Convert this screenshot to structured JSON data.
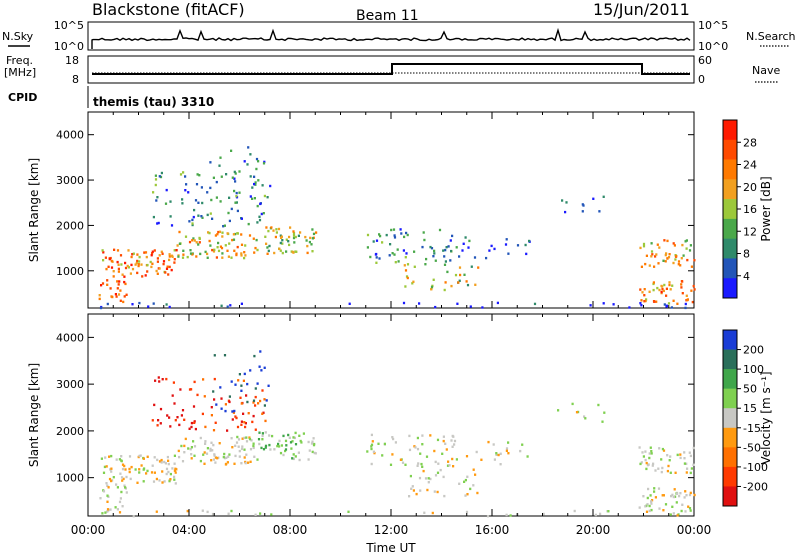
{
  "header": {
    "radar": "Blackstone (fitACF)",
    "beam": "Beam 11",
    "date": "15/Jun/2011"
  },
  "nsky_panel": {
    "left_label": "N.Sky",
    "left_ticks": [
      "10^5",
      "10^0"
    ],
    "right_ticks": [
      "10^5",
      "10^0"
    ],
    "right_label": "N.Search"
  },
  "freq_panel": {
    "left_label_line1": "Freq.",
    "left_label_line2": "[MHz]",
    "left_ticks": [
      "18",
      "8"
    ],
    "right_ticks": [
      "60",
      "0"
    ],
    "right_label": "Nave"
  },
  "cpid": {
    "label": "CPID",
    "value": "themis (tau) 3310"
  },
  "chart_data": [
    {
      "type": "heatmap",
      "name": "power",
      "ylabel": "Slant Range [km]",
      "yticks": [
        "4000",
        "3000",
        "2000",
        "1000"
      ],
      "ytick_values": [
        4000,
        3000,
        2000,
        1000
      ],
      "ylim": [
        180,
        4500
      ],
      "xlim": [
        0,
        24
      ],
      "colorbar_label": "Power [dB]",
      "colorbar_ticks": [
        "28",
        "24",
        "20",
        "16",
        "12",
        "8",
        "4"
      ],
      "colorbar_colors": [
        "#1a1aff",
        "#2255b8",
        "#2f8a6a",
        "#4aa84a",
        "#9cc83a",
        "#f2a020",
        "#ff7a00",
        "#ff4a00",
        "#ff1a00"
      ]
    },
    {
      "type": "heatmap",
      "name": "velocity",
      "ylabel": "Slant Range [km]",
      "yticks": [
        "4000",
        "3000",
        "2000",
        "1000"
      ],
      "ytick_values": [
        4000,
        3000,
        2000,
        1000
      ],
      "ylim": [
        180,
        4500
      ],
      "xlim": [
        0,
        24
      ],
      "colorbar_label": "Velocity [m s⁻¹]",
      "colorbar_ticks": [
        "200",
        "100",
        "50",
        "15",
        "-15",
        "-50",
        "-100",
        "-200"
      ],
      "colorbar_colors": [
        "#1a3dd6",
        "#2a6f5a",
        "#3fa64a",
        "#7fd050",
        "#c8c8c4",
        "#ff9a10",
        "#ff7000",
        "#ff3a00",
        "#e01010"
      ]
    }
  ],
  "xaxis": {
    "label": "Time UT",
    "ticks": [
      "00:00",
      "04:00",
      "08:00",
      "12:00",
      "16:00",
      "20:00",
      "00:00"
    ],
    "tick_hours": [
      0,
      4,
      8,
      12,
      16,
      20,
      24
    ]
  }
}
